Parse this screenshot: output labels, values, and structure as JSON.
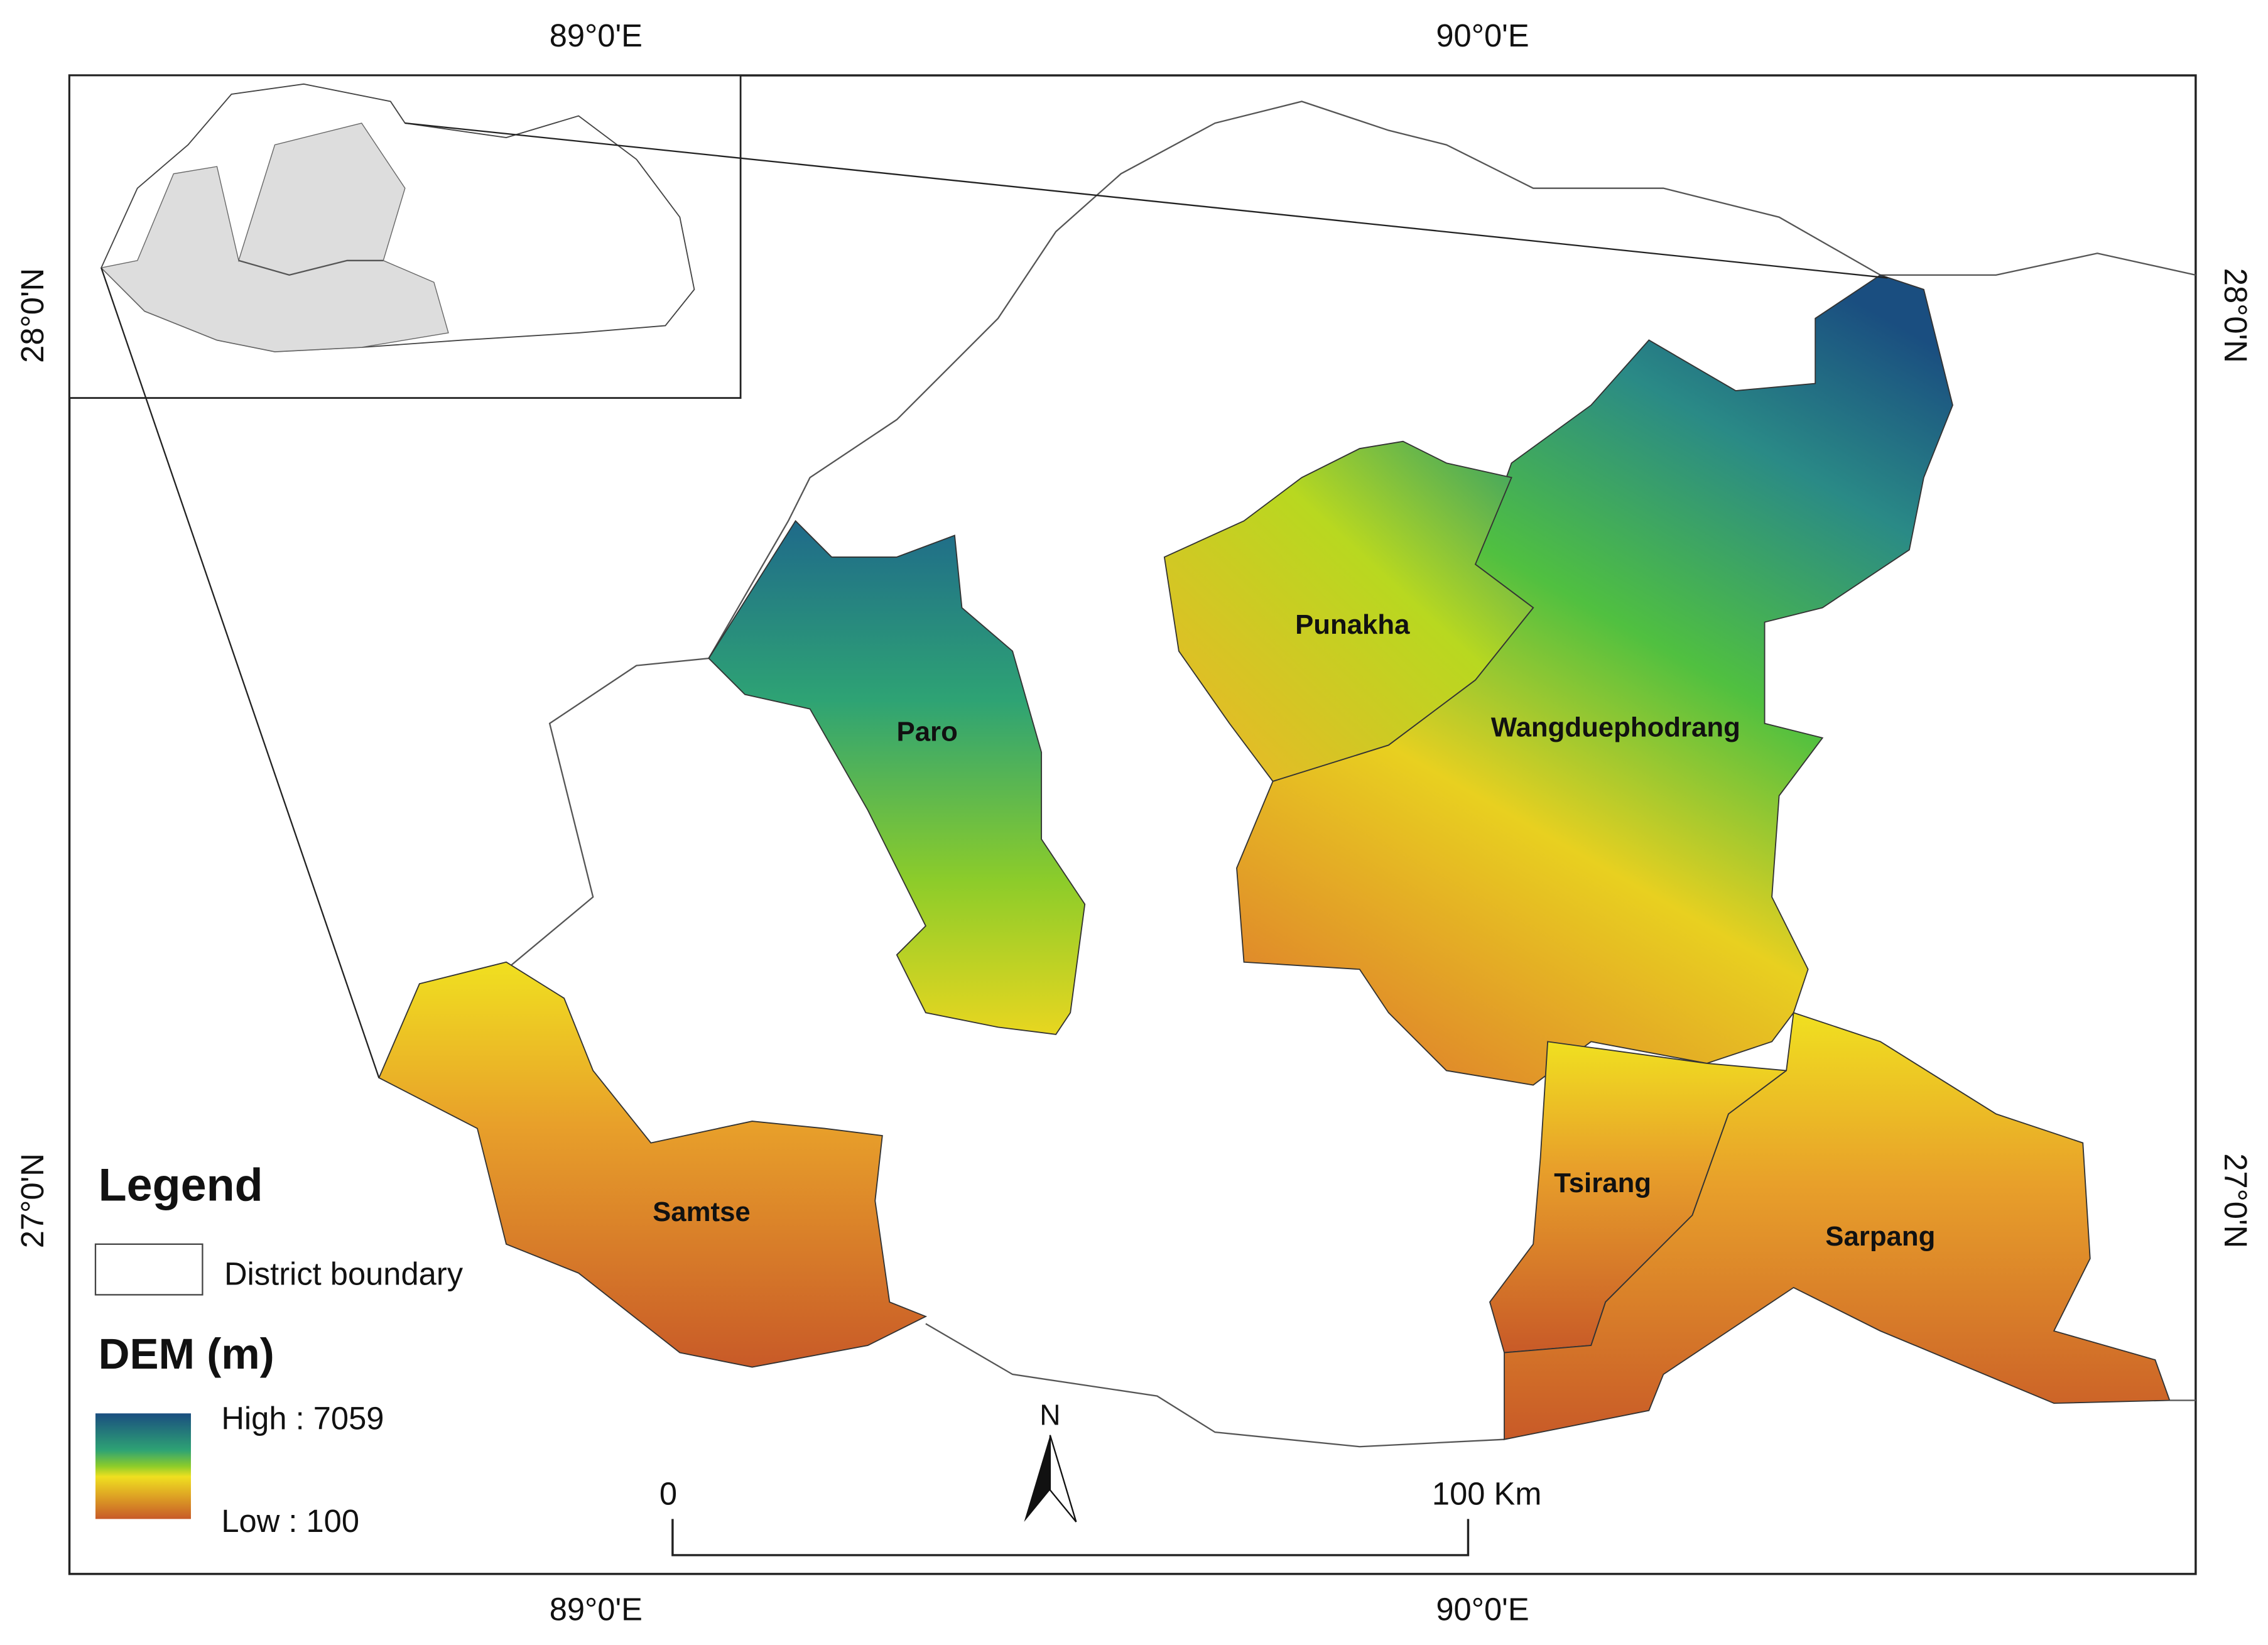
{
  "graticule": {
    "top": [
      "89°0'E",
      "90°0'E"
    ],
    "bottom": [
      "89°0'E",
      "90°0'E"
    ],
    "left": [
      "28°0'N",
      "27°0'N"
    ],
    "right": [
      "28°0'N",
      "27°0'N"
    ]
  },
  "districts": [
    "Paro",
    "Punakha",
    "Wangduephodrang",
    "Samtse",
    "Tsirang",
    "Sarpang"
  ],
  "legend": {
    "title": "Legend",
    "boundary": "District boundary",
    "dem_title": "DEM (m)",
    "high": "High : 7059",
    "low": "Low : 100"
  },
  "scale_bar": {
    "start": "0",
    "end": "100 Km"
  },
  "north": "N"
}
